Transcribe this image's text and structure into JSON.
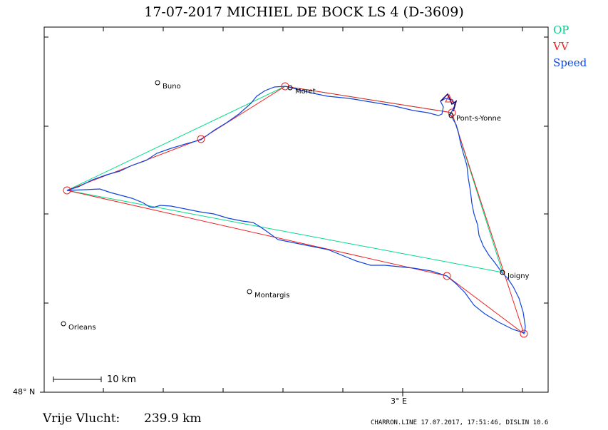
{
  "title": "17-07-2017    MICHIEL DE BOCK    LS 4 (D-3609)",
  "legend": {
    "op": {
      "label": "OP",
      "color": "#00cc88"
    },
    "vv": {
      "label": "VV",
      "color": "#ee2222"
    },
    "speed": {
      "label": "Speed",
      "color": "#1144dd"
    }
  },
  "axis": {
    "lat_label": "48° N",
    "lon_label": "3° E"
  },
  "places": [
    {
      "id": "buno",
      "name": "Buno"
    },
    {
      "id": "moret",
      "name": "Moret"
    },
    {
      "id": "pont",
      "name": "Pont-s-Yonne"
    },
    {
      "id": "joigny",
      "name": "Joigny"
    },
    {
      "id": "montargis",
      "name": "Montargis"
    },
    {
      "id": "orleans",
      "name": "Orleans"
    }
  ],
  "scale": {
    "label": "10  km"
  },
  "distance": {
    "label": "Vrije Vlucht:",
    "value": "239.9 km"
  },
  "footer": "CHARRON.LINE 17.07.2017, 17:51:46, DISLIN 10.6"
}
